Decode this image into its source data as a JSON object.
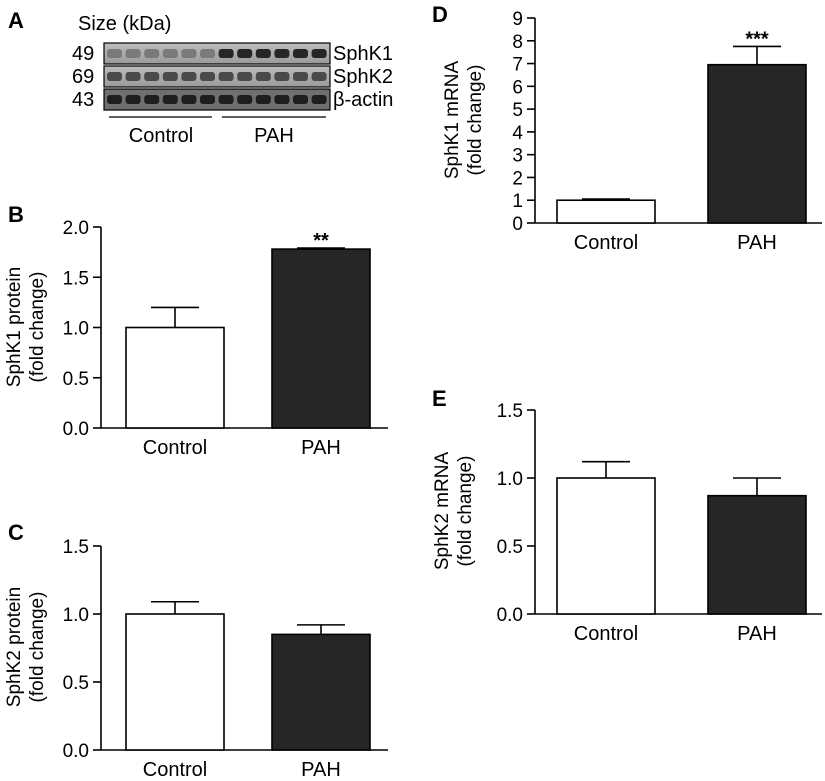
{
  "blot": {
    "panel_label": "A",
    "size_header": "Size (kDa)",
    "rows": [
      {
        "size": "49",
        "label": "SphK1"
      },
      {
        "size": "69",
        "label": "SphK2"
      },
      {
        "size": "43",
        "label": "β-actin"
      }
    ],
    "groups": [
      "Control",
      "PAH"
    ]
  },
  "colors": {
    "control": "#ffffff",
    "pah": "#262626",
    "stroke": "#000000"
  },
  "chart_data": [
    {
      "panel": "B",
      "type": "bar",
      "categories": [
        "Control",
        "PAH"
      ],
      "values": [
        1.0,
        1.78
      ],
      "errors": [
        0.2,
        0.01
      ],
      "significance": [
        "",
        "**"
      ],
      "ylabel_line1": "SphK1 protein",
      "ylabel_line2": "(fold change)",
      "ylim": [
        0,
        2.0
      ],
      "yticks": [
        "0.0",
        "0.5",
        "1.0",
        "1.5",
        "2.0"
      ]
    },
    {
      "panel": "C",
      "type": "bar",
      "categories": [
        "Control",
        "PAH"
      ],
      "values": [
        1.0,
        0.85
      ],
      "errors": [
        0.09,
        0.07
      ],
      "significance": [
        "",
        ""
      ],
      "ylabel_line1": "SphK2 protein",
      "ylabel_line2": "(fold change)",
      "ylim": [
        0,
        1.5
      ],
      "yticks": [
        "0.0",
        "0.5",
        "1.0",
        "1.5"
      ]
    },
    {
      "panel": "D",
      "type": "bar",
      "categories": [
        "Control",
        "PAH"
      ],
      "values": [
        1.0,
        6.95
      ],
      "errors": [
        0.05,
        0.8
      ],
      "significance": [
        "",
        "***"
      ],
      "ylabel_line1": "SphK1 mRNA",
      "ylabel_line2": "(fold change)",
      "ylim": [
        0,
        9
      ],
      "yticks": [
        "0",
        "1",
        "2",
        "3",
        "4",
        "5",
        "6",
        "7",
        "8",
        "9"
      ]
    },
    {
      "panel": "E",
      "type": "bar",
      "categories": [
        "Control",
        "PAH"
      ],
      "values": [
        1.0,
        0.87
      ],
      "errors": [
        0.12,
        0.13
      ],
      "significance": [
        "",
        ""
      ],
      "ylabel_line1": "SphK2 mRNA",
      "ylabel_line2": "(fold change)",
      "ylim": [
        0,
        1.5
      ],
      "yticks": [
        "0.0",
        "0.5",
        "1.0",
        "1.5"
      ]
    }
  ]
}
